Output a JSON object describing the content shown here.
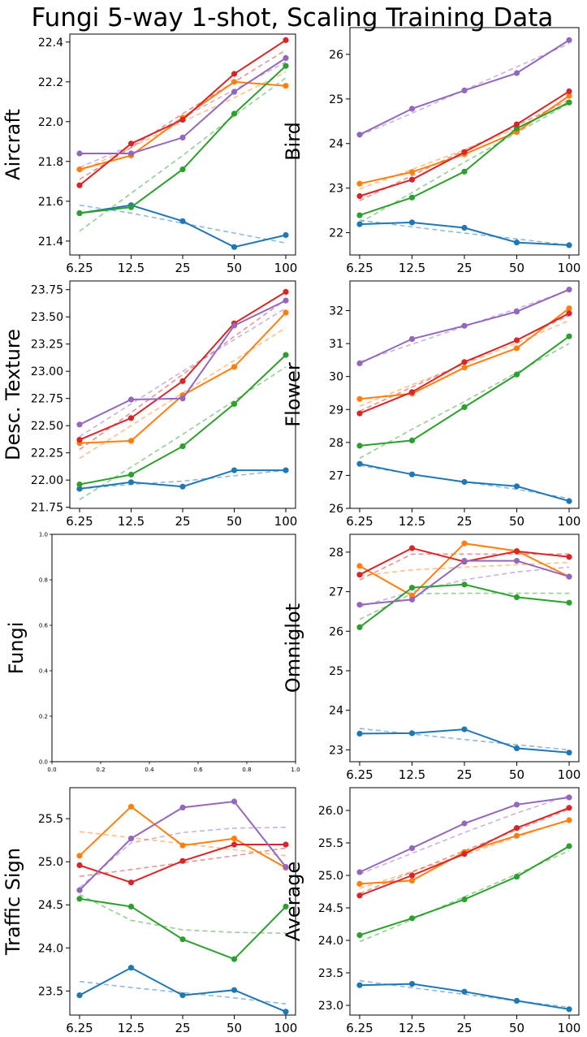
{
  "figure_title": "Fungi 5-way 1-shot, Scaling Training Data",
  "colors": {
    "s1": "#1f77b4",
    "s2": "#ff7f0e",
    "s3": "#2ca02c",
    "s4": "#d62728",
    "s5": "#9467bd"
  },
  "chart_data": [
    {
      "type": "line",
      "ylabel": "Aircraft",
      "x": [
        "6.25",
        "12.5",
        "25",
        "50",
        "100"
      ],
      "ylim": [
        21.33,
        22.44
      ],
      "yticks": [
        "21.4",
        "21.6",
        "21.8",
        "22.0",
        "22.2",
        "22.4"
      ],
      "series": [
        {
          "name": "s1",
          "values": [
            21.54,
            21.58,
            21.5,
            21.37,
            21.43
          ],
          "trend": [
            21.58,
            21.54,
            21.49,
            21.44,
            21.39
          ]
        },
        {
          "name": "s2",
          "values": [
            21.76,
            21.83,
            22.02,
            22.2,
            22.18
          ],
          "trend": [
            21.75,
            21.87,
            22.0,
            22.12,
            22.25
          ]
        },
        {
          "name": "s3",
          "values": [
            21.54,
            21.57,
            21.76,
            22.04,
            22.28
          ],
          "trend": [
            21.45,
            21.64,
            21.83,
            22.03,
            22.22
          ]
        },
        {
          "name": "s4",
          "values": [
            21.68,
            21.89,
            22.01,
            22.24,
            22.41
          ],
          "trend": [
            21.71,
            21.87,
            22.04,
            22.2,
            22.36
          ]
        },
        {
          "name": "s5",
          "values": [
            21.84,
            21.84,
            21.92,
            22.15,
            22.32
          ],
          "trend": [
            21.77,
            21.88,
            22.02,
            22.16,
            22.3
          ]
        }
      ]
    },
    {
      "type": "line",
      "ylabel": "Bird",
      "x": [
        "6.25",
        "12.5",
        "25",
        "50",
        "100"
      ],
      "ylim": [
        21.5,
        26.6
      ],
      "yticks": [
        "22",
        "23",
        "24",
        "25",
        "26"
      ],
      "series": [
        {
          "name": "s1",
          "values": [
            22.19,
            22.23,
            22.11,
            21.78,
            21.72
          ],
          "trend": [
            22.28,
            22.13,
            21.99,
            21.86,
            21.72
          ]
        },
        {
          "name": "s2",
          "values": [
            23.1,
            23.36,
            23.76,
            24.26,
            25.07
          ],
          "trend": [
            22.98,
            23.42,
            23.86,
            24.34,
            24.94
          ]
        },
        {
          "name": "s3",
          "values": [
            22.39,
            22.79,
            23.37,
            24.34,
            24.92
          ],
          "trend": [
            22.22,
            22.9,
            23.58,
            24.24,
            24.9
          ]
        },
        {
          "name": "s4",
          "values": [
            22.82,
            23.19,
            23.81,
            24.43,
            25.17
          ],
          "trend": [
            22.72,
            23.28,
            23.85,
            24.4,
            24.98
          ]
        },
        {
          "name": "s5",
          "values": [
            24.2,
            24.78,
            25.19,
            25.58,
            26.32
          ],
          "trend": [
            24.18,
            24.68,
            25.2,
            25.72,
            26.24
          ]
        }
      ]
    },
    {
      "type": "line",
      "ylabel": "Desc. Texture",
      "x": [
        "6.25",
        "12.5",
        "25",
        "50",
        "100"
      ],
      "ylim": [
        21.74,
        23.83
      ],
      "yticks": [
        "21.75",
        "22.00",
        "22.25",
        "22.50",
        "22.75",
        "23.00",
        "23.25",
        "23.50",
        "23.75"
      ],
      "series": [
        {
          "name": "s1",
          "values": [
            21.92,
            21.98,
            21.94,
            22.09,
            22.09
          ],
          "trend": [
            21.92,
            21.96,
            21.99,
            22.04,
            22.09
          ]
        },
        {
          "name": "s2",
          "values": [
            22.34,
            22.36,
            22.78,
            23.04,
            23.54
          ],
          "trend": [
            22.2,
            22.5,
            22.8,
            23.1,
            23.4
          ]
        },
        {
          "name": "s3",
          "values": [
            21.96,
            22.05,
            22.31,
            22.7,
            23.15
          ],
          "trend": [
            21.82,
            22.12,
            22.42,
            22.73,
            23.04
          ]
        },
        {
          "name": "s4",
          "values": [
            22.37,
            22.57,
            22.91,
            23.44,
            23.73
          ],
          "trend": [
            22.28,
            22.62,
            22.97,
            23.32,
            23.66
          ]
        },
        {
          "name": "s5",
          "values": [
            22.51,
            22.74,
            22.75,
            23.42,
            23.65
          ],
          "trend": [
            22.4,
            22.7,
            23.0,
            23.29,
            23.58
          ]
        }
      ]
    },
    {
      "type": "line",
      "ylabel": "Flower",
      "x": [
        "6.25",
        "12.5",
        "25",
        "50",
        "100"
      ],
      "ylim": [
        26.0,
        32.9
      ],
      "yticks": [
        "26",
        "27",
        "28",
        "29",
        "30",
        "31",
        "32"
      ],
      "series": [
        {
          "name": "s1",
          "values": [
            27.35,
            27.03,
            26.8,
            26.67,
            26.22
          ],
          "trend": [
            27.3,
            27.04,
            26.8,
            26.58,
            26.3
          ]
        },
        {
          "name": "s2",
          "values": [
            29.32,
            29.48,
            30.27,
            30.86,
            32.07
          ],
          "trend": [
            29.1,
            29.75,
            30.38,
            31.02,
            31.7
          ]
        },
        {
          "name": "s3",
          "values": [
            27.9,
            28.06,
            29.07,
            30.06,
            31.22
          ],
          "trend": [
            27.52,
            28.4,
            29.24,
            30.12,
            31.0
          ]
        },
        {
          "name": "s4",
          "values": [
            28.88,
            29.53,
            30.44,
            31.1,
            31.92
          ],
          "trend": [
            28.95,
            29.68,
            30.4,
            31.12,
            31.85
          ]
        },
        {
          "name": "s5",
          "values": [
            30.4,
            31.14,
            31.54,
            31.97,
            32.64
          ],
          "trend": [
            30.45,
            30.98,
            31.52,
            32.06,
            32.62
          ]
        }
      ]
    },
    {
      "type": "empty",
      "ylabel": "Fungi",
      "xticks": [
        "0.0",
        "0.2",
        "0.4",
        "0.6",
        "0.8",
        "1.0"
      ],
      "yticks": [
        "0.0",
        "0.2",
        "0.4",
        "0.6",
        "0.8",
        "1.0"
      ],
      "xlim": [
        0,
        1
      ],
      "ylim": [
        0,
        1
      ]
    },
    {
      "type": "line",
      "ylabel": "Omniglot",
      "x": [
        "6.25",
        "12.5",
        "25",
        "50",
        "100"
      ],
      "ylim": [
        22.7,
        28.45
      ],
      "yticks": [
        "23",
        "24",
        "25",
        "26",
        "27",
        "28"
      ],
      "series": [
        {
          "name": "s1",
          "values": [
            23.41,
            23.42,
            23.52,
            23.04,
            22.93
          ],
          "trend": [
            23.54,
            23.4,
            23.26,
            23.13,
            23.0
          ]
        },
        {
          "name": "s2",
          "values": [
            27.65,
            26.9,
            28.22,
            28.03,
            27.38
          ],
          "trend": [
            27.4,
            27.55,
            27.62,
            27.68,
            27.74
          ]
        },
        {
          "name": "s3",
          "values": [
            26.1,
            27.1,
            27.18,
            26.86,
            26.72
          ],
          "trend": [
            26.3,
            26.95,
            26.96,
            26.96,
            26.96
          ]
        },
        {
          "name": "s4",
          "values": [
            27.43,
            28.1,
            27.76,
            28.02,
            27.88
          ],
          "trend": [
            27.3,
            27.95,
            27.95,
            27.95,
            27.95
          ]
        },
        {
          "name": "s5",
          "values": [
            26.67,
            26.8,
            27.78,
            27.78,
            27.38
          ],
          "trend": [
            26.62,
            27.0,
            27.3,
            27.5,
            27.62
          ]
        }
      ]
    },
    {
      "type": "line",
      "ylabel": "Traffic Sign",
      "x": [
        "6.25",
        "12.5",
        "25",
        "50",
        "100"
      ],
      "ylim": [
        23.22,
        25.86
      ],
      "yticks": [
        "23.5",
        "24.0",
        "24.5",
        "25.0",
        "25.5"
      ],
      "series": [
        {
          "name": "s1",
          "values": [
            23.45,
            23.77,
            23.45,
            23.51,
            23.26
          ],
          "trend": [
            23.61,
            23.54,
            23.48,
            23.42,
            23.35
          ]
        },
        {
          "name": "s2",
          "values": [
            25.07,
            25.64,
            25.19,
            25.27,
            24.93
          ],
          "trend": [
            25.35,
            25.28,
            25.21,
            25.14,
            25.07
          ]
        },
        {
          "name": "s3",
          "values": [
            24.57,
            24.48,
            24.1,
            23.87,
            24.48
          ],
          "trend": [
            24.62,
            24.32,
            24.21,
            24.18,
            24.17
          ]
        },
        {
          "name": "s4",
          "values": [
            24.96,
            24.76,
            25.01,
            25.2,
            25.2
          ],
          "trend": [
            24.83,
            24.91,
            24.99,
            25.07,
            25.16
          ]
        },
        {
          "name": "s5",
          "values": [
            24.67,
            25.27,
            25.63,
            25.7,
            24.94
          ],
          "trend": [
            24.7,
            25.22,
            25.34,
            25.39,
            25.4
          ]
        }
      ]
    },
    {
      "type": "line",
      "ylabel": "Average",
      "x": [
        "6.25",
        "12.5",
        "25",
        "50",
        "100"
      ],
      "ylim": [
        22.85,
        26.35
      ],
      "yticks": [
        "23.0",
        "23.5",
        "24.0",
        "24.5",
        "25.0",
        "25.5",
        "26.0"
      ],
      "series": [
        {
          "name": "s1",
          "values": [
            23.31,
            23.33,
            23.21,
            23.07,
            22.94
          ],
          "trend": [
            23.38,
            23.27,
            23.17,
            23.07,
            22.97
          ]
        },
        {
          "name": "s2",
          "values": [
            24.87,
            24.92,
            25.36,
            25.61,
            25.85
          ],
          "trend": [
            24.8,
            25.06,
            25.32,
            25.59,
            25.86
          ]
        },
        {
          "name": "s3",
          "values": [
            24.08,
            24.34,
            24.63,
            24.98,
            25.45
          ],
          "trend": [
            23.98,
            24.32,
            24.67,
            25.02,
            25.38
          ]
        },
        {
          "name": "s4",
          "values": [
            24.69,
            25.0,
            25.33,
            25.73,
            26.04
          ],
          "trend": [
            24.72,
            25.05,
            25.38,
            25.7,
            26.02
          ]
        },
        {
          "name": "s5",
          "values": [
            25.05,
            25.42,
            25.8,
            26.09,
            26.2
          ],
          "trend": [
            25.02,
            25.34,
            25.66,
            25.96,
            26.23
          ]
        }
      ]
    }
  ]
}
